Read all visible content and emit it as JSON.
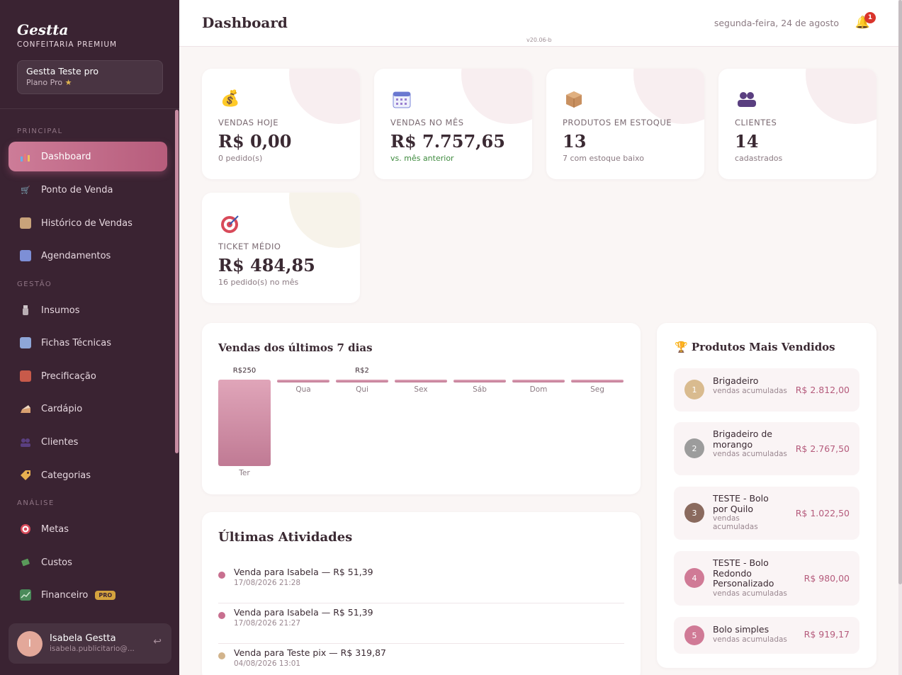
{
  "brand": {
    "name": "Gestta",
    "subtitle": "CONFEITARIA PREMIUM"
  },
  "account": {
    "name": "Gestta Teste pro",
    "plan": "Plano Pro",
    "plan_icon": "star-icon"
  },
  "sidebar": {
    "sections": [
      "PRINCIPAL",
      "GESTÃO",
      "ANÁLISE"
    ],
    "items": [
      {
        "label": "Dashboard",
        "icon": "chart-bar-icon",
        "active": true
      },
      {
        "label": "Ponto de Venda",
        "icon": "cart-icon"
      },
      {
        "label": "Histórico de Vendas",
        "icon": "clipboard-icon"
      },
      {
        "label": "Agendamentos",
        "icon": "calendar-icon"
      },
      {
        "label": "Insumos",
        "icon": "jar-icon"
      },
      {
        "label": "Fichas Técnicas",
        "icon": "book-icon"
      },
      {
        "label": "Precificação",
        "icon": "abacus-icon"
      },
      {
        "label": "Cardápio",
        "icon": "cake-icon"
      },
      {
        "label": "Clientes",
        "icon": "users-icon"
      },
      {
        "label": "Categorias",
        "icon": "tag-icon"
      },
      {
        "label": "Metas",
        "icon": "target-icon"
      },
      {
        "label": "Custos",
        "icon": "money-wings-icon"
      },
      {
        "label": "Financeiro",
        "icon": "chart-up-icon",
        "badge": "PRO"
      }
    ]
  },
  "user": {
    "initial": "I",
    "name": "Isabela Gestta",
    "email": "isabela.publicitario@..."
  },
  "header": {
    "title": "Dashboard",
    "version": "v20.06-b",
    "date": "segunda-feira, 24 de agosto",
    "notifications": "1"
  },
  "stats": [
    {
      "icon": "money-bag-icon",
      "label": "VENDAS HOJE",
      "value": "R$ 0,00",
      "sub": "0 pedido(s)"
    },
    {
      "icon": "calendar-icon",
      "label": "VENDAS NO MÊS",
      "value": "R$ 7.757,65",
      "sub": "vs. mês anterior"
    },
    {
      "icon": "package-icon",
      "label": "PRODUTOS EM ESTOQUE",
      "value": "13",
      "sub": "7 com estoque baixo"
    },
    {
      "icon": "users-icon",
      "label": "CLIENTES",
      "value": "14",
      "sub": "cadastrados"
    },
    {
      "icon": "target-icon",
      "label": "TICKET MÉDIO",
      "value": "R$ 484,85",
      "sub": "16 pedido(s) no mês"
    }
  ],
  "chart_data": {
    "type": "bar",
    "title": "Vendas dos últimos 7 dias",
    "categories": [
      "Ter",
      "Qua",
      "Qui",
      "Sex",
      "Sáb",
      "Dom",
      "Seg"
    ],
    "values": [
      250,
      0,
      2,
      0,
      0,
      0,
      0
    ],
    "value_labels": [
      "R$250",
      "",
      "R$2",
      "",
      "",
      "",
      ""
    ]
  },
  "activities": {
    "title": "Últimas Atividades",
    "items": [
      {
        "text": "Venda para Isabela — R$ 51,39",
        "time": "17/08/2026 21:28",
        "color": "#c86f8f"
      },
      {
        "text": "Venda para Isabela — R$ 51,39",
        "time": "17/08/2026 21:27",
        "color": "#c86f8f"
      },
      {
        "text": "Venda para Teste pix — R$ 319,87",
        "time": "04/08/2026 13:01",
        "color": "#d2b48c"
      }
    ]
  },
  "top_products": {
    "title": "Produtos Mais Vendidos",
    "icon": "trophy-icon",
    "items": [
      {
        "rank": "1",
        "name": "Brigadeiro",
        "sub": "vendas acumuladas",
        "price": "R$ 2.812,00",
        "color": "#d9bb8f"
      },
      {
        "rank": "2",
        "name": "Brigadeiro de morango",
        "sub": "vendas acumuladas",
        "price": "R$ 2.767,50",
        "color": "#9c9c9c"
      },
      {
        "rank": "3",
        "name": "TESTE - Bolo por Quilo",
        "sub": "vendas acumuladas",
        "price": "R$ 1.022,50",
        "color": "#8a6a5e"
      },
      {
        "rank": "4",
        "name": "TESTE - Bolo Redondo Personalizado",
        "sub": "vendas acumuladas",
        "price": "R$ 980,00",
        "color": "#d07a96"
      },
      {
        "rank": "5",
        "name": "Bolo simples",
        "sub": "vendas acumuladas",
        "price": "R$ 919,17",
        "color": "#d07a96"
      }
    ]
  }
}
